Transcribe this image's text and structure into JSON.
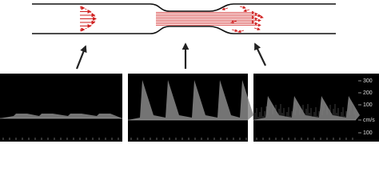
{
  "scale": {
    "labels": [
      "300",
      "200",
      "100",
      "cm/s",
      "100"
    ]
  }
}
